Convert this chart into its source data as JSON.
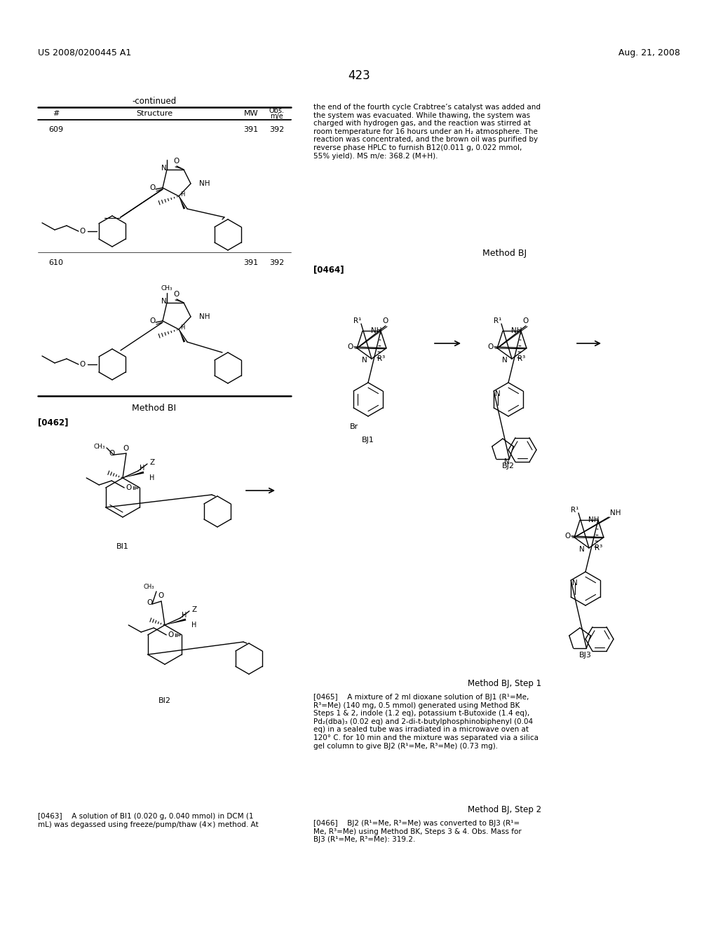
{
  "page_width": 10.24,
  "page_height": 13.2,
  "background_color": "#ffffff",
  "header_left": "US 2008/0200445 A1",
  "header_right": "Aug. 21, 2008",
  "page_number": "423",
  "table_label": "-continued",
  "method_bi": "Method BI",
  "method_bj": "Method BJ",
  "method_bj_step1": "Method BJ, Step 1",
  "method_bj_step2": "Method BJ, Step 2",
  "ref_0462": "[0462]",
  "ref_0463": "[0463]",
  "ref_0464": "[0464]",
  "ref_0465": "[0465]",
  "ref_0466": "[0466]",
  "label_bi1": "BI1",
  "label_bi2": "BI2",
  "label_bj1": "BJ1",
  "label_bj2": "BJ2",
  "label_bj3": "BJ3",
  "text_0463_right": "the end of the fourth cycle Crabtree’s catalyst was added and\nthe system was evacuated. While thawing, the system was\ncharged with hydrogen gas, and the reaction was stirred at\nroom temperature for 16 hours under an H₂ atmosphere. The\nreaction was concentrated, and the brown oil was purified by\nreverse phase HPLC to furnish B12(0.011 g, 0.022 mmol,\n55% yield). MS m/e: 368.2 (M+H).",
  "text_0463_left": "[0463]  A solution of BI1 (0.020 g, 0.040 mmol) in DCM (1\nmL) was degassed using freeze/pump/thaw (4×) method. At",
  "text_0465": "[0465]  A mixture of 2 ml dioxane solution of BJ1 (R¹=Me,\nR³=Me) (140 mg, 0.5 mmol) generated using Method BK\nSteps 1 & 2, indole (1.2 eq), potassium t-Butoxide (1.4 eq),\nPd₂(dba)₃ (0.02 eq) and 2-di-t-butylphosphinobiphenyl (0.04\neq) in a sealed tube was irradiated in a microwave oven at\n120° C. for 10 min and the mixture was separated via a silica\ngel column to give BJ2 (R¹=Me, R³=Me) (0.73 mg).",
  "text_0466": "[0466]  BJ2 (R¹=Me, R³=Me) was converted to BJ3 (R¹=\nMe, R³=Me) using Method BK, Steps 3 & 4. Obs. Mass for\nBJ3 (R¹=Me, R³=Me): 319.2."
}
